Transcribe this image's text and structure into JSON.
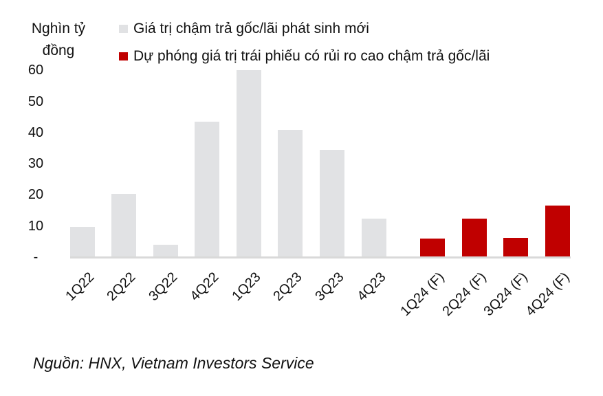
{
  "chart_data": {
    "type": "bar",
    "title": "",
    "ylabel": "Nghìn tỷ đồng",
    "xlabel": "",
    "ylim": [
      0,
      60
    ],
    "yticks": [
      "-",
      "10",
      "20",
      "30",
      "40",
      "50",
      "60"
    ],
    "grid": false,
    "legend_position": "top",
    "categories": [
      "1Q22",
      "2Q22",
      "3Q22",
      "4Q22",
      "1Q23",
      "2Q23",
      "3Q23",
      "4Q23",
      "1Q24 (F)",
      "2Q24 (F)",
      "3Q24 (F)",
      "4Q24 (F)"
    ],
    "series": [
      {
        "name": "Giá trị chậm trả gốc/lãi phát sinh mới",
        "color": "#E1E2E4",
        "values": [
          9.5,
          20.1,
          3.8,
          43.3,
          59.8,
          40.6,
          34.2,
          12.1,
          null,
          null,
          null,
          null
        ]
      },
      {
        "name": "Dự phóng giá trị trái phiếu có rủi ro cao chậm trả gốc/lãi",
        "color": "#C00000",
        "values": [
          null,
          null,
          null,
          null,
          null,
          null,
          null,
          null,
          5.7,
          12.1,
          6.0,
          16.3
        ]
      }
    ],
    "source": "Nguồn: HNX, Vietnam Investors Service"
  },
  "unit_label_line1": "Nghìn tỷ",
  "unit_label_line2": "đồng",
  "legend": [
    {
      "label": "Giá trị chậm trả gốc/lãi phát sinh mới",
      "color": "#E1E2E4"
    },
    {
      "label": "Dự phóng giá trị trái phiếu có rủi ro cao chậm trả gốc/lãi",
      "color": "#C00000"
    }
  ],
  "source": "Nguồn: HNX, Vietnam Investors Service"
}
